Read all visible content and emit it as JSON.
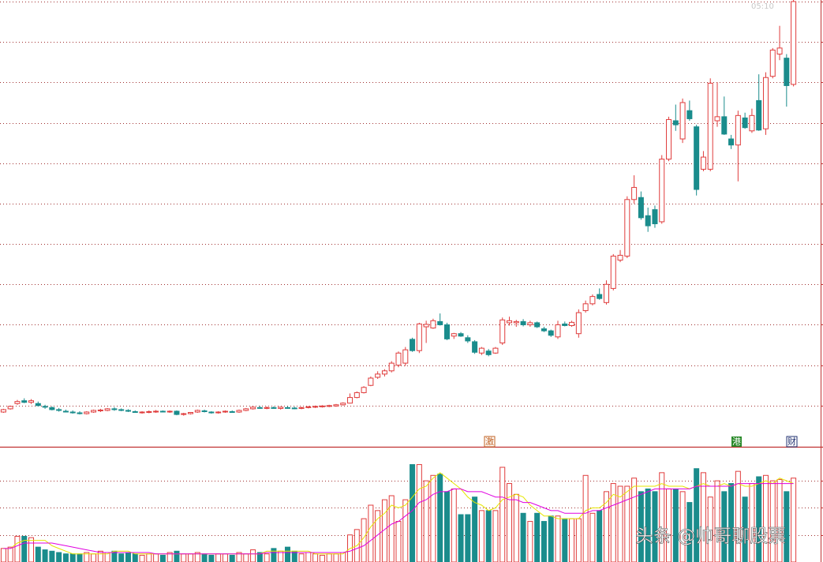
{
  "chart_data": [
    {
      "type": "candlestick",
      "time_label": "05:10",
      "ylim": [
        0,
        11
      ],
      "yticks": [
        1,
        2,
        3,
        4,
        5,
        6,
        7,
        8,
        9,
        10,
        11
      ],
      "grid": true,
      "up_color": "#e03c3c",
      "down_color": "#1a8c8c",
      "annotations": [
        "激",
        "港",
        "财"
      ],
      "ohlc": [
        [
          0.84,
          0.92,
          0.82,
          0.9
        ],
        [
          0.92,
          1.0,
          0.9,
          0.98
        ],
        [
          1.05,
          1.14,
          1.02,
          1.1
        ],
        [
          1.12,
          1.18,
          1.06,
          1.08
        ],
        [
          1.08,
          1.16,
          1.04,
          1.12
        ],
        [
          1.05,
          1.1,
          0.98,
          1.0
        ],
        [
          0.98,
          1.02,
          0.92,
          0.96
        ],
        [
          0.95,
          0.98,
          0.88,
          0.9
        ],
        [
          0.9,
          0.94,
          0.85,
          0.88
        ],
        [
          0.86,
          0.9,
          0.83,
          0.85
        ],
        [
          0.84,
          0.88,
          0.8,
          0.83
        ],
        [
          0.82,
          0.86,
          0.78,
          0.8
        ],
        [
          0.8,
          0.86,
          0.78,
          0.84
        ],
        [
          0.84,
          0.9,
          0.82,
          0.88
        ],
        [
          0.87,
          0.92,
          0.84,
          0.89
        ],
        [
          0.88,
          0.94,
          0.86,
          0.92
        ],
        [
          0.92,
          0.96,
          0.87,
          0.9
        ],
        [
          0.9,
          0.93,
          0.86,
          0.88
        ],
        [
          0.88,
          0.91,
          0.84,
          0.86
        ],
        [
          0.85,
          0.88,
          0.82,
          0.84
        ],
        [
          0.83,
          0.86,
          0.8,
          0.84
        ],
        [
          0.84,
          0.88,
          0.81,
          0.85
        ],
        [
          0.85,
          0.89,
          0.82,
          0.86
        ],
        [
          0.86,
          0.88,
          0.83,
          0.85
        ],
        [
          0.85,
          0.88,
          0.82,
          0.86
        ],
        [
          0.86,
          0.88,
          0.76,
          0.78
        ],
        [
          0.78,
          0.82,
          0.75,
          0.8
        ],
        [
          0.8,
          0.84,
          0.78,
          0.83
        ],
        [
          0.84,
          0.9,
          0.82,
          0.88
        ],
        [
          0.87,
          0.9,
          0.83,
          0.85
        ],
        [
          0.84,
          0.86,
          0.8,
          0.82
        ],
        [
          0.82,
          0.86,
          0.8,
          0.84
        ],
        [
          0.84,
          0.88,
          0.82,
          0.86
        ],
        [
          0.85,
          0.88,
          0.82,
          0.84
        ],
        [
          0.84,
          0.9,
          0.82,
          0.88
        ],
        [
          0.88,
          0.94,
          0.86,
          0.92
        ],
        [
          0.92,
          0.98,
          0.9,
          0.96
        ],
        [
          0.95,
          0.99,
          0.92,
          0.94
        ],
        [
          0.94,
          0.98,
          0.91,
          0.95
        ],
        [
          0.95,
          0.98,
          0.92,
          0.93
        ],
        [
          0.93,
          0.97,
          0.9,
          0.96
        ],
        [
          0.95,
          0.98,
          0.92,
          0.94
        ],
        [
          0.94,
          0.97,
          0.91,
          0.93
        ],
        [
          0.93,
          0.97,
          0.91,
          0.95
        ],
        [
          0.95,
          0.99,
          0.93,
          0.97
        ],
        [
          0.96,
          1.0,
          0.94,
          0.98
        ],
        [
          0.97,
          1.01,
          0.95,
          0.99
        ],
        [
          0.98,
          1.02,
          0.96,
          1.0
        ],
        [
          0.99,
          1.04,
          0.97,
          1.02
        ],
        [
          1.02,
          1.08,
          1.0,
          1.06
        ],
        [
          1.06,
          1.3,
          1.05,
          1.2
        ],
        [
          1.2,
          1.35,
          1.18,
          1.32
        ],
        [
          1.32,
          1.48,
          1.3,
          1.45
        ],
        [
          1.5,
          1.72,
          1.48,
          1.68
        ],
        [
          1.7,
          1.85,
          1.66,
          1.78
        ],
        [
          1.78,
          1.9,
          1.72,
          1.86
        ],
        [
          1.86,
          2.1,
          1.82,
          2.05
        ],
        [
          2.0,
          2.34,
          1.95,
          2.3
        ],
        [
          2.05,
          2.45,
          1.98,
          2.38
        ],
        [
          2.64,
          2.68,
          2.33,
          2.36
        ],
        [
          2.36,
          3.05,
          2.3,
          3.02
        ],
        [
          2.95,
          3.1,
          2.55,
          3.01
        ],
        [
          2.92,
          3.15,
          2.9,
          3.1
        ],
        [
          3.08,
          3.28,
          2.98,
          3.0
        ],
        [
          3.0,
          3.05,
          2.62,
          2.65
        ],
        [
          2.72,
          2.8,
          2.65,
          2.78
        ],
        [
          2.78,
          2.82,
          2.7,
          2.72
        ],
        [
          2.68,
          2.74,
          2.55,
          2.6
        ],
        [
          2.58,
          2.62,
          2.28,
          2.32
        ],
        [
          2.3,
          2.45,
          2.25,
          2.42
        ],
        [
          2.35,
          2.4,
          2.22,
          2.26
        ],
        [
          2.3,
          2.45,
          2.28,
          2.42
        ],
        [
          2.55,
          3.18,
          2.5,
          3.12
        ],
        [
          3.05,
          3.2,
          2.98,
          3.1
        ],
        [
          3.05,
          3.12,
          2.95,
          3.08
        ],
        [
          3.08,
          3.14,
          2.96,
          3.0
        ],
        [
          3.0,
          3.1,
          2.95,
          3.05
        ],
        [
          3.05,
          3.08,
          2.92,
          2.95
        ],
        [
          2.9,
          2.95,
          2.82,
          2.85
        ],
        [
          2.85,
          2.88,
          2.7,
          2.74
        ],
        [
          2.7,
          3.1,
          2.65,
          3.0
        ],
        [
          3.02,
          3.08,
          2.96,
          2.98
        ],
        [
          2.98,
          3.1,
          2.95,
          3.06
        ],
        [
          2.78,
          3.38,
          2.68,
          3.3
        ],
        [
          3.35,
          3.6,
          3.3,
          3.52
        ],
        [
          3.52,
          3.75,
          3.48,
          3.7
        ],
        [
          3.75,
          3.9,
          3.62,
          3.65
        ],
        [
          3.55,
          4.1,
          3.5,
          4.0
        ],
        [
          3.9,
          4.75,
          3.85,
          4.7
        ],
        [
          4.6,
          4.85,
          4.55,
          4.72
        ],
        [
          4.7,
          6.18,
          4.65,
          6.1
        ],
        [
          6.1,
          6.7,
          6.0,
          6.4
        ],
        [
          6.15,
          6.3,
          5.6,
          5.65
        ],
        [
          5.7,
          5.9,
          5.3,
          5.45
        ],
        [
          5.85,
          5.95,
          5.4,
          5.5
        ],
        [
          5.55,
          7.2,
          5.5,
          7.1
        ],
        [
          7.1,
          8.15,
          7.05,
          8.08
        ],
        [
          8.05,
          8.45,
          7.8,
          7.95
        ],
        [
          7.6,
          8.6,
          7.5,
          8.5
        ],
        [
          8.3,
          8.55,
          8.05,
          8.1
        ],
        [
          7.9,
          7.95,
          6.2,
          6.35
        ],
        [
          6.85,
          7.3,
          6.8,
          7.15
        ],
        [
          6.85,
          9.1,
          6.8,
          8.98
        ],
        [
          8.05,
          9.0,
          7.9,
          8.15
        ],
        [
          8.15,
          8.65,
          7.7,
          7.72
        ],
        [
          7.6,
          7.7,
          7.35,
          7.45
        ],
        [
          7.45,
          8.3,
          6.55,
          8.18
        ],
        [
          8.12,
          8.25,
          7.85,
          7.88
        ],
        [
          7.8,
          8.35,
          7.75,
          8.18
        ],
        [
          8.55,
          9.2,
          7.8,
          7.82
        ],
        [
          7.85,
          9.25,
          7.7,
          9.12
        ],
        [
          9.15,
          9.85,
          9.1,
          9.8
        ],
        [
          9.7,
          10.4,
          9.55,
          9.85
        ],
        [
          9.6,
          9.7,
          8.4,
          8.92
        ],
        [
          8.95,
          11.05,
          8.9,
          11.0
        ]
      ]
    },
    {
      "type": "bar",
      "ylim": [
        0,
        4.2
      ],
      "yticks": [
        1,
        2,
        3
      ],
      "grid": true,
      "values": [
        0.5,
        0.55,
        0.95,
        0.95,
        0.9,
        0.55,
        0.45,
        0.4,
        0.35,
        0.3,
        0.3,
        0.3,
        0.35,
        0.3,
        0.4,
        0.35,
        0.4,
        0.3,
        0.35,
        0.3,
        0.25,
        0.3,
        0.3,
        0.25,
        0.35,
        0.4,
        0.3,
        0.3,
        0.35,
        0.3,
        0.25,
        0.3,
        0.3,
        0.25,
        0.35,
        0.3,
        0.45,
        0.35,
        0.3,
        0.5,
        0.4,
        0.55,
        0.4,
        0.3,
        0.35,
        0.3,
        0.25,
        0.3,
        0.3,
        0.35,
        1.0,
        1.2,
        1.6,
        2.1,
        1.9,
        2.3,
        2.45,
        1.5,
        2.3,
        3.6,
        3.6,
        3.0,
        3.2,
        3.25,
        2.6,
        2.7,
        1.75,
        1.75,
        2.4,
        1.9,
        1.9,
        1.9,
        3.5,
        2.9,
        2.5,
        1.8,
        1.5,
        1.8,
        1.5,
        1.7,
        1.7,
        1.6,
        1.6,
        1.6,
        3.2,
        1.8,
        1.9,
        2.6,
        2.9,
        2.8,
        2.8,
        3.1,
        2.6,
        2.7,
        2.6,
        3.3,
        2.7,
        2.7,
        2.6,
        2.2,
        3.45,
        3.3,
        2.4,
        3.0,
        2.6,
        2.9,
        3.35,
        2.4,
        2.9,
        3.15,
        3.2,
        3.0,
        3.05,
        2.6,
        3.1
      ],
      "lines": [
        {
          "color": "#e6e600",
          "values": [
            0.5,
            0.5,
            0.7,
            0.8,
            0.8,
            0.8,
            0.8,
            0.6,
            0.5,
            0.4,
            0.3,
            0.3,
            0.3,
            0.3,
            0.3,
            0.3,
            0.4,
            0.4,
            0.4,
            0.3,
            0.3,
            0.3,
            0.3,
            0.3,
            0.3,
            0.3,
            0.3,
            0.3,
            0.3,
            0.3,
            0.3,
            0.3,
            0.3,
            0.3,
            0.3,
            0.3,
            0.3,
            0.3,
            0.4,
            0.4,
            0.4,
            0.4,
            0.4,
            0.4,
            0.4,
            0.3,
            0.3,
            0.3,
            0.3,
            0.3,
            0.5,
            0.6,
            0.9,
            1.3,
            1.6,
            1.8,
            2.1,
            2.0,
            2.1,
            2.4,
            2.7,
            2.8,
            3.1,
            3.3,
            3.1,
            2.9,
            2.7,
            2.4,
            2.2,
            2.1,
            1.9,
            2.0,
            2.3,
            2.4,
            2.5,
            2.4,
            2.1,
            1.9,
            1.7,
            1.7,
            1.6,
            1.6,
            1.6,
            1.6,
            1.9,
            2.0,
            2.0,
            2.2,
            2.5,
            2.4,
            2.6,
            2.8,
            2.8,
            2.8,
            2.8,
            2.9,
            2.8,
            2.8,
            2.8,
            2.7,
            2.8,
            2.9,
            2.8,
            2.8,
            2.9,
            2.8,
            2.9,
            2.8,
            2.8,
            2.9,
            3.0,
            2.9,
            3.1,
            3.0,
            2.9
          ]
        },
        {
          "color": "#e000e0",
          "values": [
            0.5,
            0.5,
            0.6,
            0.7,
            0.7,
            0.7,
            0.7,
            0.7,
            0.65,
            0.6,
            0.55,
            0.5,
            0.45,
            0.4,
            0.35,
            0.35,
            0.35,
            0.35,
            0.35,
            0.35,
            0.35,
            0.35,
            0.3,
            0.3,
            0.3,
            0.3,
            0.3,
            0.3,
            0.3,
            0.3,
            0.3,
            0.3,
            0.3,
            0.3,
            0.3,
            0.3,
            0.3,
            0.3,
            0.35,
            0.35,
            0.35,
            0.35,
            0.35,
            0.35,
            0.35,
            0.35,
            0.35,
            0.35,
            0.35,
            0.35,
            0.4,
            0.5,
            0.6,
            0.8,
            1.0,
            1.2,
            1.4,
            1.5,
            1.7,
            1.9,
            2.2,
            2.3,
            2.5,
            2.6,
            2.6,
            2.7,
            2.7,
            2.6,
            2.6,
            2.6,
            2.5,
            2.4,
            2.4,
            2.3,
            2.3,
            2.2,
            2.2,
            2.1,
            2.0,
            1.9,
            1.9,
            1.8,
            1.8,
            1.8,
            1.8,
            1.9,
            1.9,
            2.0,
            2.1,
            2.2,
            2.3,
            2.4,
            2.5,
            2.6,
            2.7,
            2.7,
            2.7,
            2.7,
            2.7,
            2.7,
            2.8,
            2.8,
            2.8,
            2.8,
            2.8,
            2.8,
            2.9,
            2.9,
            2.9,
            2.9,
            2.9,
            2.9,
            2.9,
            2.9,
            2.9
          ]
        }
      ]
    }
  ],
  "watermark": "头条 @帅哥聊股票"
}
